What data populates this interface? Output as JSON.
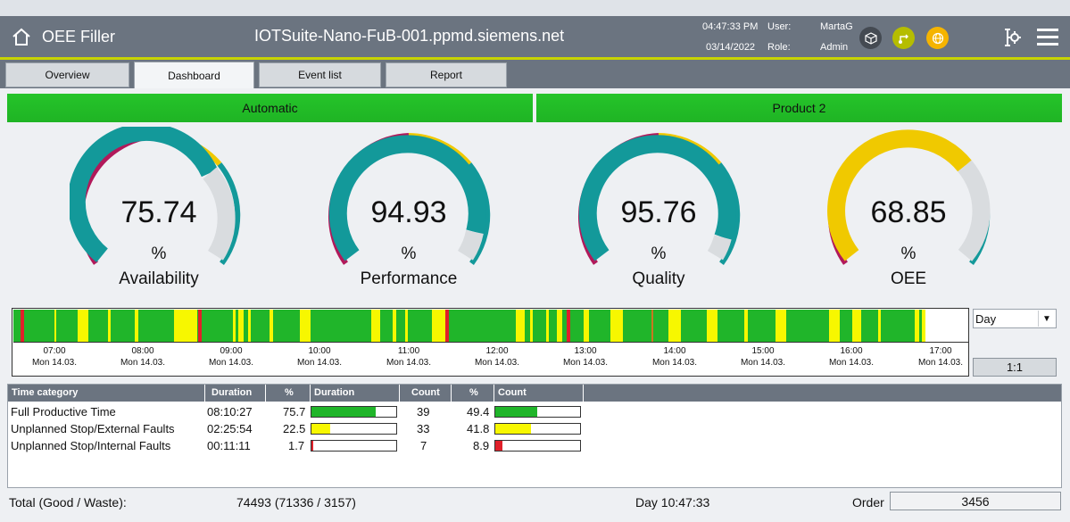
{
  "header": {
    "app_title": "OEE Filler",
    "device_title": "IOTSuite-Nano-FuB-001.ppmd.siemens.net",
    "time": "04:47:33 PM",
    "date": "03/14/2022",
    "user_label": "User:",
    "user": "MartaG",
    "role_label": "Role:",
    "role": "Admin",
    "status_icons": [
      {
        "name": "cube-icon",
        "color": "#444a52"
      },
      {
        "name": "connection-icon",
        "color": "#b5bd00"
      },
      {
        "name": "globe-icon",
        "color": "#f5b400"
      }
    ]
  },
  "tabs": [
    {
      "label": "Overview"
    },
    {
      "label": "Dashboard",
      "active": true
    },
    {
      "label": "Event list"
    },
    {
      "label": "Report"
    }
  ],
  "status": {
    "mode": "Automatic",
    "product": "Product 2"
  },
  "gauges": [
    {
      "value": "75.74",
      "unit": "%",
      "label": "Availability"
    },
    {
      "value": "94.93",
      "unit": "%",
      "label": "Performance"
    },
    {
      "value": "95.76",
      "unit": "%",
      "label": "Quality"
    },
    {
      "value": "68.85",
      "unit": "%",
      "label": "OEE"
    }
  ],
  "colors": {
    "productive": "#20b52a",
    "external": "#f7f700",
    "internal": "#e0202a",
    "teal": "#13999a",
    "magenta": "#b1195a",
    "gold": "#f0c900",
    "header": "#6b7480"
  },
  "timeline": {
    "ticks": [
      {
        "time": "07:00",
        "date": "Mon 14.03."
      },
      {
        "time": "08:00",
        "date": "Mon 14.03."
      },
      {
        "time": "09:00",
        "date": "Mon 14.03."
      },
      {
        "time": "10:00",
        "date": "Mon 14.03."
      },
      {
        "time": "11:00",
        "date": "Mon 14.03."
      },
      {
        "time": "12:00",
        "date": "Mon 14.03."
      },
      {
        "time": "13:00",
        "date": "Mon 14.03."
      },
      {
        "time": "14:00",
        "date": "Mon 14.03."
      },
      {
        "time": "15:00",
        "date": "Mon 14.03."
      },
      {
        "time": "16:00",
        "date": "Mon 14.03."
      },
      {
        "time": "17:00",
        "date": "Mon 14.03."
      }
    ],
    "range_select": "Day",
    "zoom": "1:1"
  },
  "table": {
    "headers": [
      "Time category",
      "Duration",
      "%",
      "Duration",
      "Count",
      "%",
      "Count"
    ],
    "rows": [
      {
        "category": "Full Productive Time",
        "duration": "08:10:27",
        "pct": "75.7",
        "count": "39",
        "count_pct": "49.4",
        "color": "#20b52a"
      },
      {
        "category": "Unplanned Stop/External Faults",
        "duration": "02:25:54",
        "pct": "22.5",
        "count": "33",
        "count_pct": "41.8",
        "color": "#f7f700"
      },
      {
        "category": "Unplanned Stop/Internal Faults",
        "duration": "00:11:11",
        "pct": "1.7",
        "count": "7",
        "count_pct": "8.9",
        "color": "#e0202a"
      }
    ]
  },
  "footer": {
    "total_label": "Total (Good / Waste):",
    "total_value": "74493 (71336 / 3157)",
    "day": "Day 10:47:33",
    "order_label": "Order",
    "order_value": "3456"
  }
}
